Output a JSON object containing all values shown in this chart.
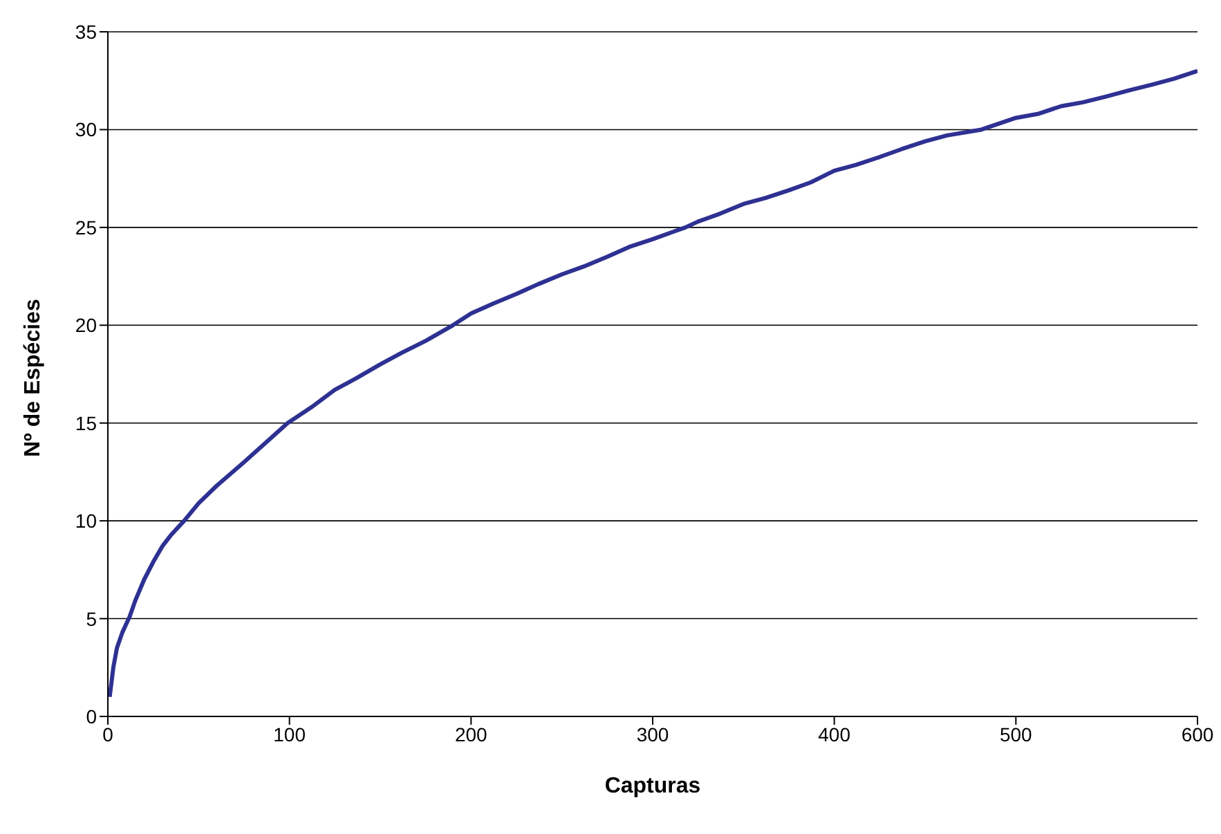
{
  "chart_data": {
    "type": "line",
    "xlabel": "Capturas",
    "ylabel": "Nº de Espécies",
    "x": [
      1,
      3,
      5,
      8,
      10,
      12,
      15,
      20,
      25,
      30,
      35,
      42,
      50,
      60,
      75,
      87,
      99,
      112,
      125,
      137,
      150,
      162,
      175,
      190,
      200,
      212,
      225,
      237,
      250,
      262,
      275,
      287,
      300,
      312,
      318,
      325,
      337,
      350,
      362,
      375,
      387,
      400,
      412,
      425,
      437,
      450,
      462,
      481,
      500,
      512,
      525,
      537,
      550,
      562,
      575,
      587,
      600
    ],
    "series": [
      {
        "color": "#2e3192",
        "values": [
          1,
          2.5,
          3.5,
          4.3,
          4.7,
          5.1,
          5.9,
          7,
          7.9,
          8.7,
          9.3,
          10,
          10.9,
          11.8,
          13,
          14,
          15,
          15.8,
          16.7,
          17.3,
          18,
          18.6,
          19.2,
          20,
          20.6,
          21.1,
          21.6,
          22.1,
          22.6,
          23,
          23.5,
          24,
          24.4,
          24.8,
          25,
          25.3,
          25.7,
          26.2,
          26.5,
          26.9,
          27.3,
          27.9,
          28.2,
          28.6,
          29,
          29.4,
          29.7,
          30,
          30.6,
          30.8,
          31.2,
          31.4,
          31.7,
          32,
          32.3,
          32.6,
          33
        ]
      }
    ],
    "xlim": [
      0,
      600
    ],
    "xticks": [
      0,
      100,
      200,
      300,
      400,
      500,
      600
    ],
    "ylim": [
      0,
      35
    ],
    "yticks": [
      0,
      5,
      10,
      15,
      20,
      25,
      30,
      35
    ],
    "grid": "y",
    "legend": false,
    "marker": "none",
    "line_style": "solid"
  }
}
